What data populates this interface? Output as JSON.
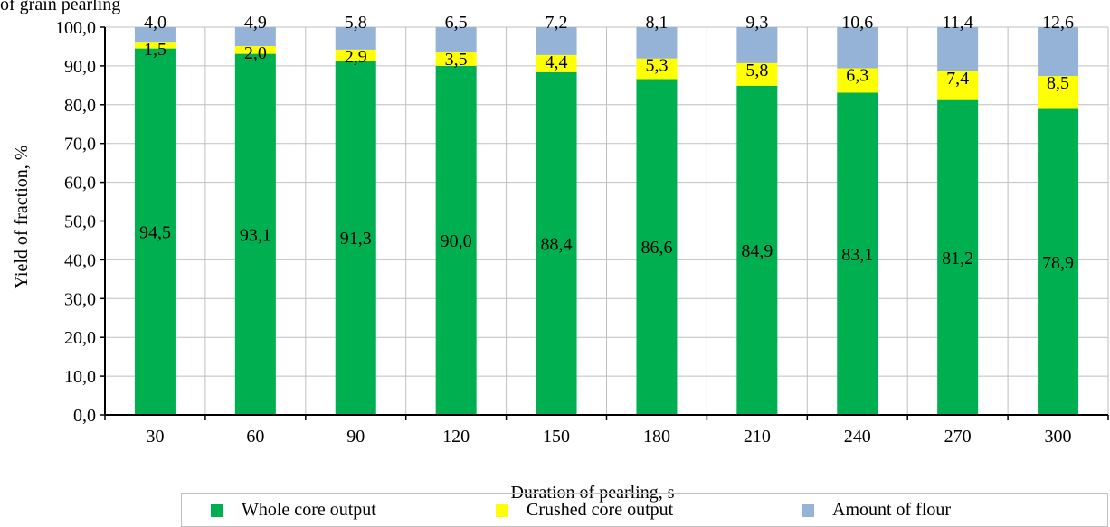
{
  "caption": "of grain pearling",
  "chart_data": {
    "type": "bar",
    "stacked": true,
    "title": "",
    "xlabel": "Duration of pearling, s",
    "ylabel": "Yield of fraction, %",
    "categories": [
      "30",
      "60",
      "90",
      "120",
      "150",
      "180",
      "210",
      "240",
      "270",
      "300"
    ],
    "ylim": [
      0,
      100
    ],
    "yticks": [
      "0,0",
      "10,0",
      "20,0",
      "30,0",
      "40,0",
      "50,0",
      "60,0",
      "70,0",
      "80,0",
      "90,0",
      "100,0"
    ],
    "grid": "vertical and horizontal",
    "legend_position": "bottom",
    "series": [
      {
        "name": "Whole core output",
        "color": "#00b050",
        "values": [
          94.5,
          93.1,
          91.3,
          90.0,
          88.4,
          86.6,
          84.9,
          83.1,
          81.2,
          78.9
        ],
        "labels": [
          "94,5",
          "93,1",
          "91,3",
          "90,0",
          "88,4",
          "86,6",
          "84,9",
          "83,1",
          "81,2",
          "78,9"
        ]
      },
      {
        "name": "Crushed core output",
        "color": "#ffff00",
        "values": [
          1.5,
          2.0,
          2.9,
          3.5,
          4.4,
          5.3,
          5.8,
          6.3,
          7.4,
          8.5
        ],
        "labels": [
          "1,5",
          "2,0",
          "2,9",
          "3,5",
          "4,4",
          "5,3",
          "5,8",
          "6,3",
          "7,4",
          "8,5"
        ]
      },
      {
        "name": "Amount of flour",
        "color": "#95b3d7",
        "values": [
          4.0,
          4.9,
          5.8,
          6.5,
          7.2,
          8.1,
          9.3,
          10.6,
          11.4,
          12.6
        ],
        "labels": [
          "4,0",
          "4,9",
          "5,8",
          "6,5",
          "7,2",
          "8,1",
          "9,3",
          "10,6",
          "11,4",
          "12,6"
        ]
      }
    ]
  }
}
